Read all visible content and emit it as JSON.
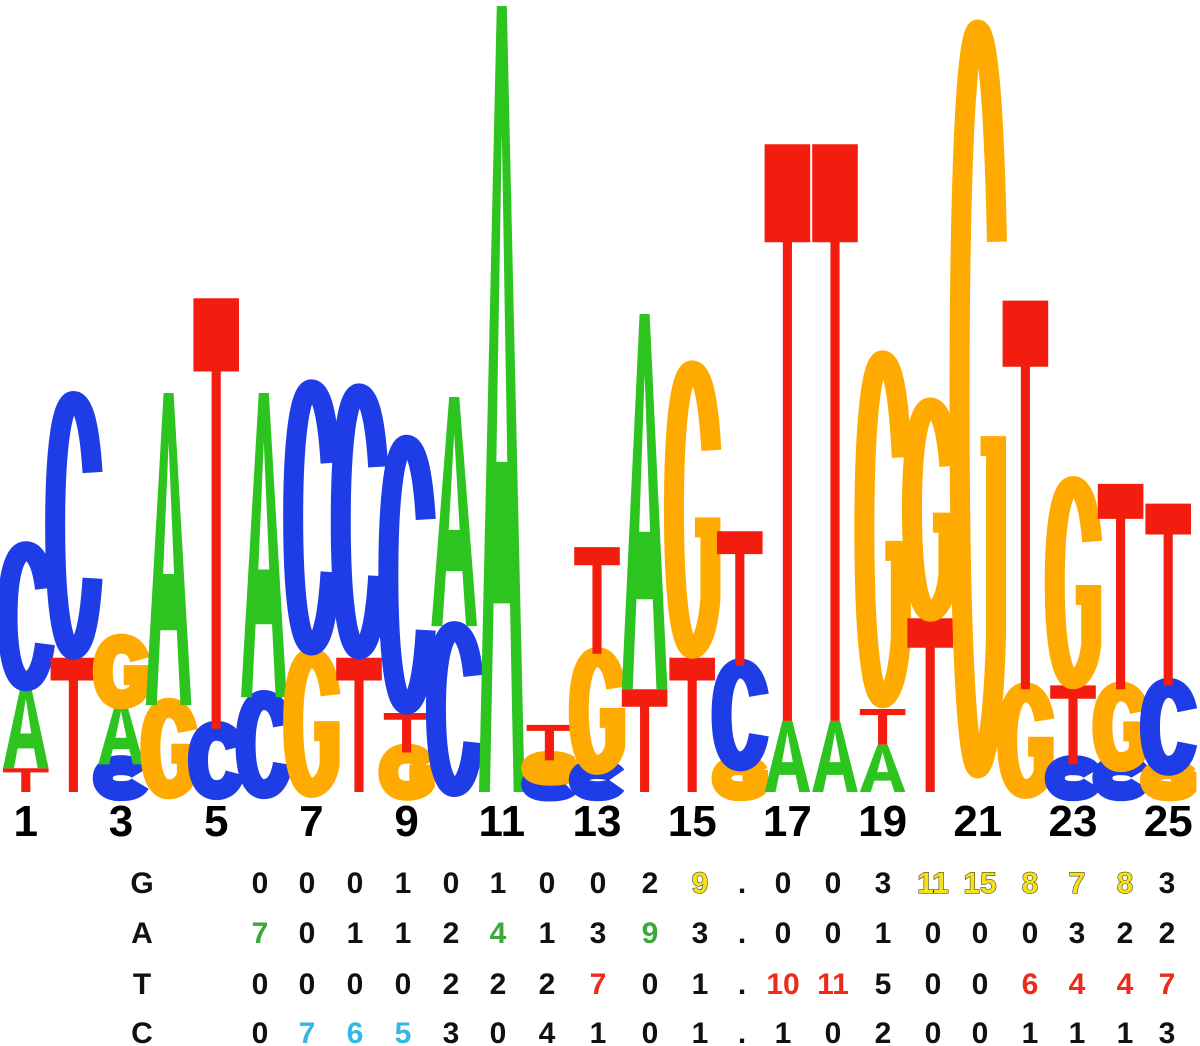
{
  "colors": {
    "A": "#2ec41f",
    "C": "#1f3de6",
    "G": "#ffaa00",
    "T": "#f21d0e",
    "text": "#111111",
    "cyan": "#33b8e6",
    "yellow": "#f5e11a",
    "green": "#3aa83a",
    "red": "#ee2a1a"
  },
  "logo": {
    "positions": [
      {
        "label": "1",
        "stack": [
          [
            "T",
            0.3
          ],
          [
            "A",
            1.05
          ],
          [
            "C",
            1.75
          ]
        ]
      },
      {
        "label": "",
        "stack": [
          [
            "T",
            1.7
          ],
          [
            "C",
            3.35
          ]
        ]
      },
      {
        "label": "3",
        "stack": [
          [
            "C",
            0.35
          ],
          [
            "A",
            0.8
          ],
          [
            "G",
            0.75
          ]
        ]
      },
      {
        "label": "",
        "stack": [
          [
            "G",
            1.1
          ],
          [
            "A",
            3.95
          ]
        ]
      },
      {
        "label": "5",
        "stack": [
          [
            "C",
            0.8
          ],
          [
            "T",
            5.45
          ]
        ]
      },
      {
        "label": "",
        "stack": [
          [
            "C",
            1.2
          ],
          [
            "A",
            3.85
          ]
        ]
      },
      {
        "label": "7",
        "stack": [
          [
            "G",
            1.75
          ],
          [
            "C",
            3.45
          ]
        ]
      },
      {
        "label": "",
        "stack": [
          [
            "T",
            1.7
          ],
          [
            "C",
            3.45
          ]
        ]
      },
      {
        "label": "9",
        "stack": [
          [
            "G",
            0.5
          ],
          [
            "T",
            0.5
          ],
          [
            "C",
            3.5
          ]
        ]
      },
      {
        "label": "",
        "stack": [
          [
            "C",
            2.1
          ],
          [
            "A",
            2.9
          ]
        ]
      },
      {
        "label": "11",
        "stack": [
          [
            "A",
            9.95
          ]
        ]
      },
      {
        "label": "",
        "stack": [
          [
            "C",
            0.2
          ],
          [
            "G",
            0.2
          ],
          [
            "T",
            0.45
          ]
        ]
      },
      {
        "label": "13",
        "stack": [
          [
            "C",
            0.3
          ],
          [
            "G",
            1.45
          ],
          [
            "T",
            1.35
          ]
        ]
      },
      {
        "label": "",
        "stack": [
          [
            "T",
            1.3
          ],
          [
            "A",
            4.75
          ]
        ]
      },
      {
        "label": "15",
        "stack": [
          [
            "T",
            1.7
          ],
          [
            "G",
            3.75
          ]
        ]
      },
      {
        "label": "",
        "stack": [
          [
            "G",
            0.35
          ],
          [
            "C",
            1.25
          ],
          [
            "T",
            1.7
          ]
        ]
      },
      {
        "label": "17",
        "stack": [
          [
            "A",
            0.9
          ],
          [
            "T",
            7.3
          ]
        ]
      },
      {
        "label": "",
        "stack": [
          [
            "A",
            0.9
          ],
          [
            "T",
            7.3
          ]
        ]
      },
      {
        "label": "19",
        "stack": [
          [
            "A",
            0.6
          ],
          [
            "T",
            0.45
          ],
          [
            "G",
            4.55
          ]
        ]
      },
      {
        "label": "",
        "stack": [
          [
            "T",
            2.2
          ],
          [
            "G",
            2.75
          ]
        ]
      },
      {
        "label": "21",
        "stack": [
          [
            "G",
            9.95
          ]
        ]
      },
      {
        "label": "",
        "stack": [
          [
            "G",
            1.3
          ],
          [
            "T",
            4.92
          ]
        ]
      },
      {
        "label": "23",
        "stack": [
          [
            "C",
            0.35
          ],
          [
            "T",
            1.0
          ],
          [
            "G",
            2.6
          ]
        ]
      },
      {
        "label": "",
        "stack": [
          [
            "C",
            0.35
          ],
          [
            "G",
            0.95
          ],
          [
            "T",
            2.6
          ]
        ]
      },
      {
        "label": "25",
        "stack": [
          [
            "G",
            0.3
          ],
          [
            "C",
            1.05
          ],
          [
            "T",
            2.3
          ]
        ]
      }
    ]
  },
  "matrix": {
    "rows": [
      {
        "label": "G",
        "values": [
          {
            "v": "0",
            "c": "text"
          },
          {
            "v": "0",
            "c": "text"
          },
          {
            "v": "0",
            "c": "text"
          },
          {
            "v": "1",
            "c": "text"
          },
          {
            "v": "0",
            "c": "text"
          },
          {
            "v": "1",
            "c": "text"
          },
          {
            "v": "0",
            "c": "text"
          },
          {
            "v": "0",
            "c": "text"
          },
          {
            "v": "2",
            "c": "text"
          },
          {
            "v": "9",
            "c": "yellow"
          },
          {
            "v": ".",
            "c": "text"
          },
          {
            "v": "0",
            "c": "text"
          },
          {
            "v": "0",
            "c": "text"
          },
          {
            "v": "3",
            "c": "text"
          },
          {
            "v": "11",
            "c": "yellow"
          },
          {
            "v": "15",
            "c": "yellow"
          },
          {
            "v": "8",
            "c": "yellow"
          },
          {
            "v": "7",
            "c": "yellow"
          },
          {
            "v": "8",
            "c": "yellow"
          },
          {
            "v": "3",
            "c": "text"
          }
        ]
      },
      {
        "label": "A",
        "values": [
          {
            "v": "7",
            "c": "green"
          },
          {
            "v": "0",
            "c": "text"
          },
          {
            "v": "1",
            "c": "text"
          },
          {
            "v": "1",
            "c": "text"
          },
          {
            "v": "2",
            "c": "text"
          },
          {
            "v": "4",
            "c": "green"
          },
          {
            "v": "1",
            "c": "text"
          },
          {
            "v": "3",
            "c": "text"
          },
          {
            "v": "9",
            "c": "green"
          },
          {
            "v": "3",
            "c": "text"
          },
          {
            "v": ".",
            "c": "text"
          },
          {
            "v": "0",
            "c": "text"
          },
          {
            "v": "0",
            "c": "text"
          },
          {
            "v": "1",
            "c": "text"
          },
          {
            "v": "0",
            "c": "text"
          },
          {
            "v": "0",
            "c": "text"
          },
          {
            "v": "0",
            "c": "text"
          },
          {
            "v": "3",
            "c": "text"
          },
          {
            "v": "2",
            "c": "text"
          },
          {
            "v": "2",
            "c": "text"
          }
        ]
      },
      {
        "label": "T",
        "values": [
          {
            "v": "0",
            "c": "text"
          },
          {
            "v": "0",
            "c": "text"
          },
          {
            "v": "0",
            "c": "text"
          },
          {
            "v": "0",
            "c": "text"
          },
          {
            "v": "2",
            "c": "text"
          },
          {
            "v": "2",
            "c": "text"
          },
          {
            "v": "2",
            "c": "text"
          },
          {
            "v": "7",
            "c": "red"
          },
          {
            "v": "0",
            "c": "text"
          },
          {
            "v": "1",
            "c": "text"
          },
          {
            "v": ".",
            "c": "text"
          },
          {
            "v": "10",
            "c": "red"
          },
          {
            "v": "11",
            "c": "red"
          },
          {
            "v": "5",
            "c": "text"
          },
          {
            "v": "0",
            "c": "text"
          },
          {
            "v": "0",
            "c": "text"
          },
          {
            "v": "6",
            "c": "red"
          },
          {
            "v": "4",
            "c": "red"
          },
          {
            "v": "4",
            "c": "red"
          },
          {
            "v": "7",
            "c": "red"
          }
        ]
      },
      {
        "label": "C",
        "values": [
          {
            "v": "0",
            "c": "text"
          },
          {
            "v": "7",
            "c": "cyan"
          },
          {
            "v": "6",
            "c": "cyan"
          },
          {
            "v": "5",
            "c": "cyan"
          },
          {
            "v": "3",
            "c": "text"
          },
          {
            "v": "0",
            "c": "text"
          },
          {
            "v": "4",
            "c": "text"
          },
          {
            "v": "1",
            "c": "text"
          },
          {
            "v": "0",
            "c": "text"
          },
          {
            "v": "1",
            "c": "text"
          },
          {
            "v": ".",
            "c": "text"
          },
          {
            "v": "1",
            "c": "text"
          },
          {
            "v": "0",
            "c": "text"
          },
          {
            "v": "2",
            "c": "text"
          },
          {
            "v": "0",
            "c": "text"
          },
          {
            "v": "0",
            "c": "text"
          },
          {
            "v": "1",
            "c": "text"
          },
          {
            "v": "1",
            "c": "text"
          },
          {
            "v": "1",
            "c": "text"
          },
          {
            "v": "3",
            "c": "text"
          }
        ]
      }
    ]
  }
}
